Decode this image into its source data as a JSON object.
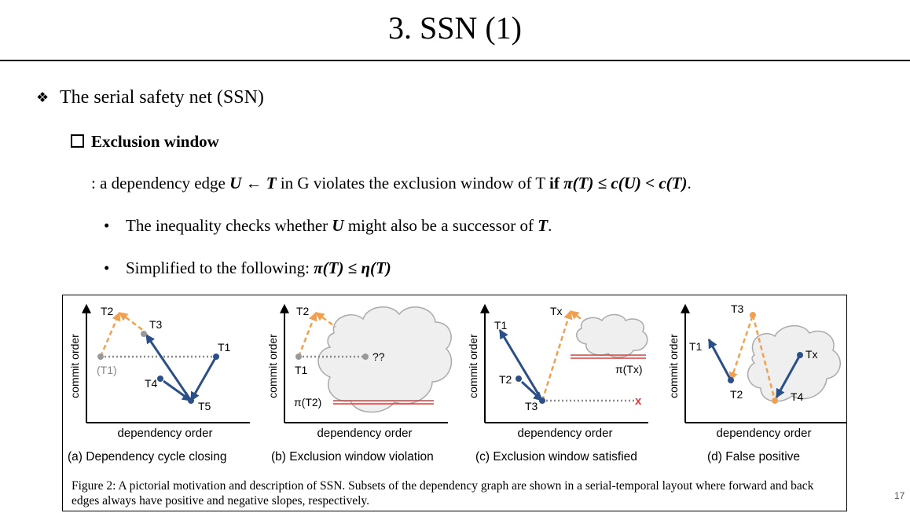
{
  "slide": {
    "title": "3. SSN (1)",
    "bullet_glyph": "❖",
    "bullet": "The serial safety net (SSN)",
    "subheading": "Exclusion window",
    "definition": {
      "prefix": ": a dependency edge ",
      "edge": "U ← T",
      "middle": " in G violates the exclusion window of T ",
      "keyword": "if",
      "condition": "π(T) ≤ c(U) < c(T)",
      "suffix": "."
    },
    "points": [
      {
        "text_a": "The inequality checks whether ",
        "var_u": "U",
        "text_b": " might also be a successor of ",
        "var_t": "T",
        "text_c": "."
      },
      {
        "text_a": "Simplified to the following: ",
        "formula": "π(T) ≤ η(T)"
      }
    ],
    "page_number": "17"
  },
  "figure": {
    "colors": {
      "forward": "#f0a050",
      "back": "#2b4f87",
      "red": "#e53935",
      "cloud": "#efefef",
      "dots": "#888888"
    },
    "y_axis_label": "commit order",
    "x_axis_label": "dependency order",
    "panels": [
      {
        "id": "a",
        "caption": "(a) Dependency cycle closing",
        "labels": {
          "t2": "T2",
          "t3": "T3",
          "t1": "T1",
          "t1_ghost": "(T1)",
          "t4": "T4",
          "t5": "T5"
        }
      },
      {
        "id": "b",
        "caption": "(b) Exclusion window violation",
        "labels": {
          "t2": "T2",
          "t1": "T1",
          "unknown": "??",
          "pi_t2": "π(T2)"
        }
      },
      {
        "id": "c",
        "caption": "(c) Exclusion window satisfied",
        "labels": {
          "tx": "Tx",
          "t1": "T1",
          "t2": "T2",
          "t3": "T3",
          "pi_tx": "π(Tx)",
          "cross": "x"
        }
      },
      {
        "id": "d",
        "caption": "(d) False positive",
        "labels": {
          "t3": "T3",
          "t1": "T1",
          "tx": "Tx",
          "t2": "T2",
          "t4": "T4"
        }
      }
    ],
    "caption": "Figure 2: A pictorial motivation and description of SSN. Subsets of the dependency graph are shown in a serial-temporal layout where forward and back edges always have positive and negative slopes, respectively."
  }
}
